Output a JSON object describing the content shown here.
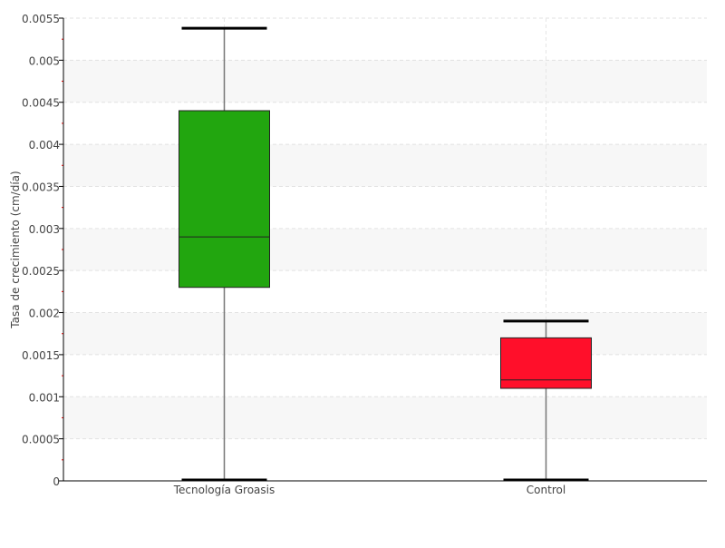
{
  "chart_data": {
    "type": "boxplot",
    "title": "",
    "xlabel": "",
    "ylabel": "Tasa de crecimiento (cm/día)",
    "ylim": [
      0,
      0.0055
    ],
    "yticks": [
      "0",
      "0.0005",
      "0.001",
      "0.0015",
      "0.002",
      "0.0025",
      "0.003",
      "0.0035",
      "0.004",
      "0.0045",
      "0.005",
      "0.0055"
    ],
    "grid": true,
    "categories": [
      "Tecnología Groasis",
      "Control"
    ],
    "series": [
      {
        "category": "Tecnología Groasis",
        "min": 0,
        "q1": 0.0023,
        "median": 0.0029,
        "q3": 0.0044,
        "max": 0.00538,
        "color": "#22a60f"
      },
      {
        "category": "Control",
        "min": 0,
        "q1": 0.0011,
        "median": 0.0012,
        "q3": 0.0017,
        "max": 0.0019,
        "color": "#ff0f2a"
      }
    ]
  }
}
